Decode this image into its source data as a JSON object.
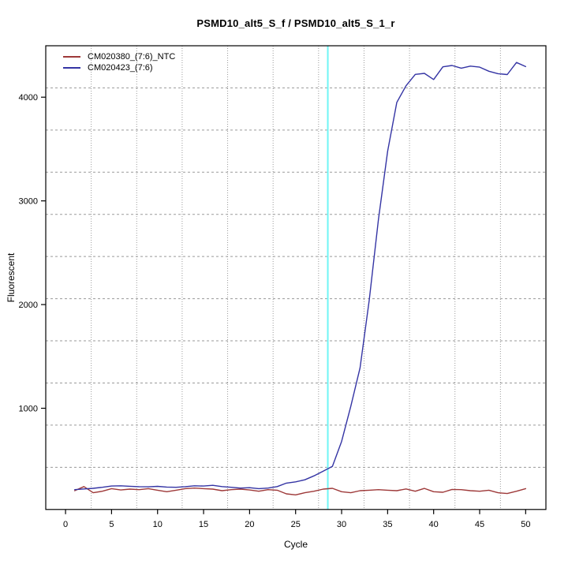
{
  "chart_data": {
    "type": "line",
    "title": "PSMD10_alt5_S_f / PSMD10_alt5_S_1_r",
    "xlabel": "Cycle",
    "ylabel": "Fluorescent",
    "xlim": [
      -2.15,
      52.2
    ],
    "ylim": [
      24,
      4496
    ],
    "x_ticks": [
      0,
      5,
      10,
      15,
      20,
      25,
      30,
      35,
      40,
      45,
      50
    ],
    "y_ticks": [
      1000,
      2000,
      3000,
      4000
    ],
    "grid": {
      "divisions_x": 11,
      "divisions_y": 11,
      "style": "dotted",
      "color": "#9a9a9a"
    },
    "threshold_line": {
      "x": 28.5,
      "color": "#70f6f6"
    },
    "legend_position": "top-left",
    "x": [
      1,
      2,
      3,
      4,
      5,
      6,
      7,
      8,
      9,
      10,
      11,
      12,
      13,
      14,
      15,
      16,
      17,
      18,
      19,
      20,
      21,
      22,
      23,
      24,
      25,
      26,
      27,
      28,
      29,
      30,
      31,
      32,
      33,
      34,
      35,
      36,
      37,
      38,
      39,
      40,
      41,
      42,
      43,
      44,
      45,
      46,
      47,
      48,
      49,
      50
    ],
    "series": [
      {
        "name": "CM020380_(7:6)_NTC",
        "color": "#9e3939",
        "values": [
          205,
          245,
          185,
          200,
          225,
          212,
          220,
          215,
          225,
          210,
          195,
          210,
          225,
          230,
          225,
          220,
          205,
          215,
          220,
          212,
          200,
          215,
          210,
          175,
          165,
          185,
          200,
          220,
          228,
          195,
          185,
          205,
          210,
          215,
          210,
          205,
          222,
          200,
          227,
          195,
          190,
          217,
          215,
          205,
          200,
          210,
          185,
          178,
          200,
          225
        ]
      },
      {
        "name": "CM020423_(7:6)",
        "color": "#3434a4",
        "values": [
          215,
          222,
          228,
          238,
          250,
          252,
          248,
          244,
          242,
          247,
          240,
          238,
          244,
          252,
          250,
          257,
          245,
          238,
          230,
          234,
          225,
          230,
          245,
          278,
          290,
          310,
          348,
          393,
          440,
          680,
          1020,
          1390,
          2040,
          2820,
          3480,
          3950,
          4110,
          4220,
          4230,
          4170,
          4293,
          4306,
          4280,
          4300,
          4290,
          4250,
          4227,
          4218,
          4335,
          4295
        ]
      }
    ]
  }
}
